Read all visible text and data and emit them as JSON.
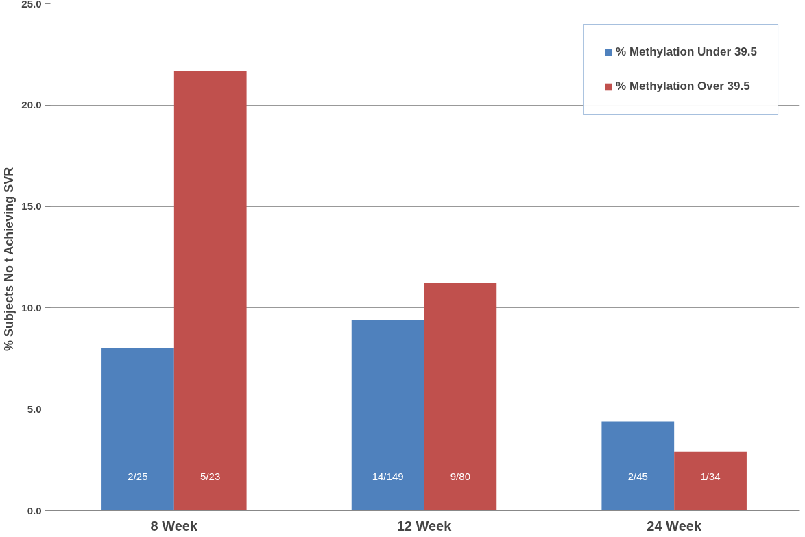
{
  "chart_data": {
    "type": "bar",
    "ylabel": "% Subjects No t Achieving  SVR",
    "categories": [
      "8 Week",
      "12 Week",
      "24 Week"
    ],
    "series": [
      {
        "name": "% Methylation Under 39.5",
        "color": "#4f81bd",
        "values": [
          8.0,
          9.4,
          4.4
        ],
        "value_labels": [
          "2/25",
          "14/149",
          "2/45"
        ]
      },
      {
        "name": "% Methylation Over 39.5",
        "color": "#c0504d",
        "values": [
          21.7,
          11.25,
          2.9
        ],
        "value_labels": [
          "5/23",
          "9/80",
          "1/34"
        ]
      }
    ],
    "ylim": [
      0,
      25
    ],
    "yticks": [
      {
        "value": 0,
        "label": "0.0"
      },
      {
        "value": 5,
        "label": "5.0"
      },
      {
        "value": 10,
        "label": "10.0"
      },
      {
        "value": 15,
        "label": "15.0"
      },
      {
        "value": 20,
        "label": "20.0"
      },
      {
        "value": 25,
        "label": "25.0"
      }
    ],
    "grid": "y",
    "legend": "top right"
  }
}
